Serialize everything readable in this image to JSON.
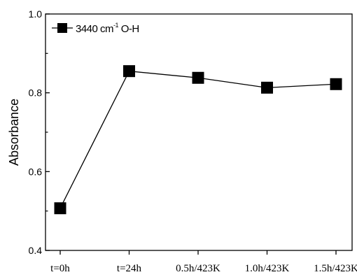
{
  "chart_data": {
    "type": "line",
    "categories": [
      "t=0h",
      "t=24h",
      "0.5h/423K",
      "1.0h/423K",
      "1.5h/423K"
    ],
    "series": [
      {
        "name": "3440 cm-1 O-H",
        "values": [
          0.507,
          0.855,
          0.838,
          0.813,
          0.822
        ]
      }
    ],
    "legend": {
      "text": "3440 cm",
      "superscript": "-1",
      "suffix": " O-H",
      "position": "top-left"
    },
    "xlabel": "",
    "ylabel": "Absorbance",
    "ylim": [
      0.4,
      1.0
    ],
    "yticks": [
      "0.4",
      "0.6",
      "0.8",
      "1.0"
    ],
    "grid": false,
    "marker": "square",
    "color": "#000000"
  }
}
